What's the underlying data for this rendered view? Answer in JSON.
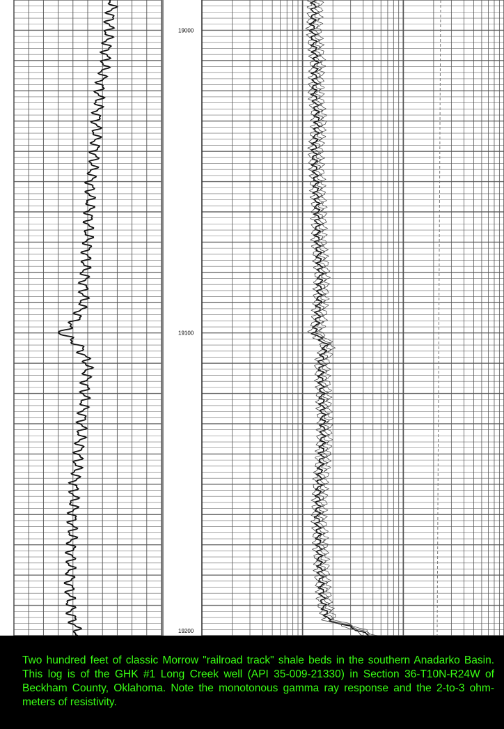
{
  "caption": "Two hundred feet of classic Morrow \"railroad track\" shale beds in the southern Anadarko Basin. This log is of the GHK #1 Long Creek well (API 35-009-21330) in Section 36-T10N-R24W of Beckham County, Oklahoma. Note the monotonous gamma ray response and the 2-to-3 ohm-meters of resistivity.",
  "colors": {
    "caption_bg": "#000000",
    "caption_text": "#39ff14",
    "grid": "#555555",
    "curve": "#111111"
  },
  "chart_data": {
    "type": "line",
    "title": "",
    "depth_range": [
      18990,
      19200
    ],
    "depth_labels": [
      "19000",
      "19100",
      "19200"
    ],
    "depth_label_values": [
      19000,
      19100,
      19200
    ],
    "tracks": [
      {
        "name": "",
        "scale": "linear",
        "x_range": [
          0,
          100
        ],
        "series": [
          {
            "name": "",
            "depth": [
              18990,
              19000,
              19010,
              19020,
              19030,
              19040,
              19050,
              19060,
              19070,
              19080,
              19090,
              19096,
              19100,
              19104,
              19110,
              19120,
              19130,
              19140,
              19150,
              19160,
              19170,
              19180,
              19190,
              19195,
              19200
            ],
            "value": [
              67,
              64,
              62,
              58,
              56,
              55,
              52,
              51,
              50,
              48,
              47,
              42,
              32,
              44,
              50,
              48,
              46,
              44,
              41,
              40,
              39,
              38,
              38,
              40,
              44
            ]
          }
        ]
      },
      {
        "name": "",
        "scale": "log",
        "x_range": [
          0.2,
          200
        ],
        "series": [
          {
            "name": "",
            "depth": [
              18990,
              19000,
              19010,
              19020,
              19030,
              19040,
              19050,
              19060,
              19070,
              19080,
              19090,
              19096,
              19100,
              19104,
              19110,
              19120,
              19130,
              19140,
              19150,
              19160,
              19170,
              19180,
              19190,
              19195,
              19200
            ],
            "value": [
              2.6,
              2.5,
              2.7,
              2.6,
              2.8,
              2.6,
              2.7,
              2.8,
              2.8,
              3.0,
              2.9,
              2.8,
              2.6,
              3.4,
              3.0,
              3.1,
              3.2,
              3.1,
              2.9,
              2.8,
              2.9,
              3.0,
              3.2,
              3.6,
              9.0
            ]
          }
        ]
      }
    ]
  }
}
